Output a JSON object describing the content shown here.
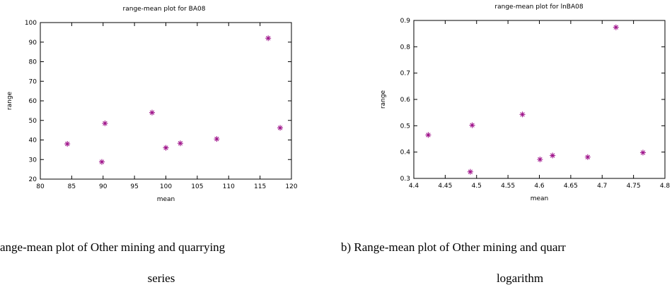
{
  "chart_data": [
    {
      "type": "scatter",
      "title": "range-mean plot for BA08",
      "x_label": "mean",
      "y_label": "range",
      "series": [
        {
          "color": "#a0168c",
          "x": [
            84.3,
            89.8,
            90.3,
            97.8,
            100.0,
            102.3,
            108.1,
            116.3,
            118.2
          ],
          "values": [
            38.0,
            28.8,
            48.5,
            54.0,
            36.0,
            38.3,
            40.5,
            92.0,
            46.2
          ]
        }
      ],
      "xlim": [
        80,
        120
      ],
      "xticks": [
        80,
        85,
        90,
        95,
        100,
        105,
        110,
        115,
        120
      ],
      "ylim": [
        20,
        100
      ],
      "yticks": [
        20,
        30,
        40,
        50,
        60,
        70,
        80,
        90,
        100
      ],
      "grid": false,
      "caption": [
        "ange-mean plot of Other mining and quarrying",
        "series"
      ]
    },
    {
      "type": "scatter",
      "title": "range-mean plot for lnBA08",
      "x_label": "mean",
      "y_label": "range",
      "series": [
        {
          "color": "#a0168c",
          "x": [
            4.423,
            4.49,
            4.493,
            4.573,
            4.601,
            4.621,
            4.677,
            4.722,
            4.765
          ],
          "values": [
            0.465,
            0.325,
            0.502,
            0.543,
            0.372,
            0.387,
            0.381,
            0.874,
            0.398
          ]
        }
      ],
      "xlim": [
        4.4,
        4.8
      ],
      "xticks": [
        4.4,
        4.45,
        4.5,
        4.55,
        4.6,
        4.65,
        4.7,
        4.75,
        4.8
      ],
      "ylim": [
        0.3,
        0.9
      ],
      "yticks": [
        0.3,
        0.4,
        0.5,
        0.6,
        0.7,
        0.8,
        0.9
      ],
      "grid": false,
      "caption": [
        "b) Range-mean plot of Other mining and quarr",
        "logarithm"
      ]
    }
  ]
}
